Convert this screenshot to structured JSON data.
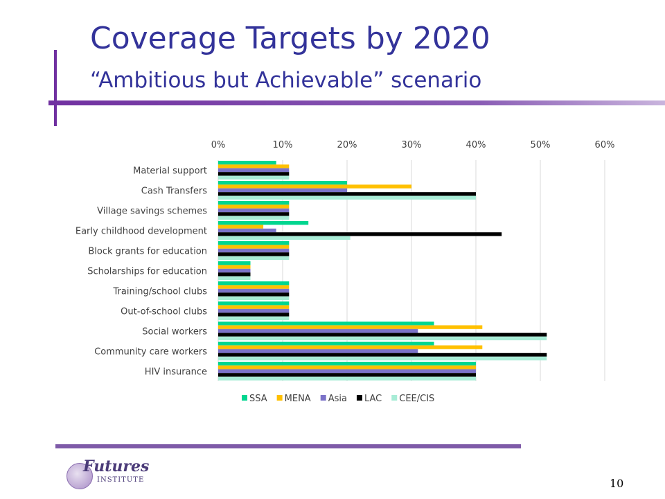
{
  "slide": {
    "title": "Coverage Targets by 2020",
    "subtitle": "“Ambitious but Achievable” scenario",
    "page_number": "10"
  },
  "logo": {
    "name": "Futures",
    "sub": "INSTITUTE"
  },
  "chart_data": {
    "type": "bar",
    "orientation": "horizontal",
    "categories": [
      "Material support",
      "Cash Transfers",
      "Village savings schemes",
      "Early childhood development",
      "Block grants for education",
      "Scholarships for education",
      "Training/school clubs",
      "Out-of-school clubs",
      "Social workers",
      "Community care workers",
      "HIV insurance"
    ],
    "series": [
      {
        "name": "SSA",
        "color": "#00d68f",
        "values": [
          9,
          20,
          11,
          14,
          11,
          5,
          11,
          11,
          33.5,
          33.5,
          40
        ]
      },
      {
        "name": "MENA",
        "color": "#ffc000",
        "values": [
          11,
          30,
          11,
          7,
          11,
          5,
          11,
          11,
          41,
          41,
          40
        ]
      },
      {
        "name": "Asia",
        "color": "#7b72c8",
        "values": [
          11,
          20,
          11,
          9,
          11,
          5,
          11,
          11,
          31,
          31,
          40
        ]
      },
      {
        "name": "LAC",
        "color": "#000000",
        "values": [
          11,
          40,
          11,
          44,
          11,
          5,
          11,
          11,
          51,
          51,
          40
        ]
      },
      {
        "name": "CEE/CIS",
        "color": "#a8ecd6",
        "values": [
          11,
          40,
          11,
          20.5,
          11,
          5,
          11,
          11,
          51,
          51,
          40
        ]
      }
    ],
    "xlim": [
      0,
      60
    ],
    "xticks": [
      "0%",
      "10%",
      "20%",
      "30%",
      "40%",
      "50%",
      "60%"
    ],
    "xaxis_position": "top",
    "grid": true,
    "legend_position": "bottom"
  }
}
